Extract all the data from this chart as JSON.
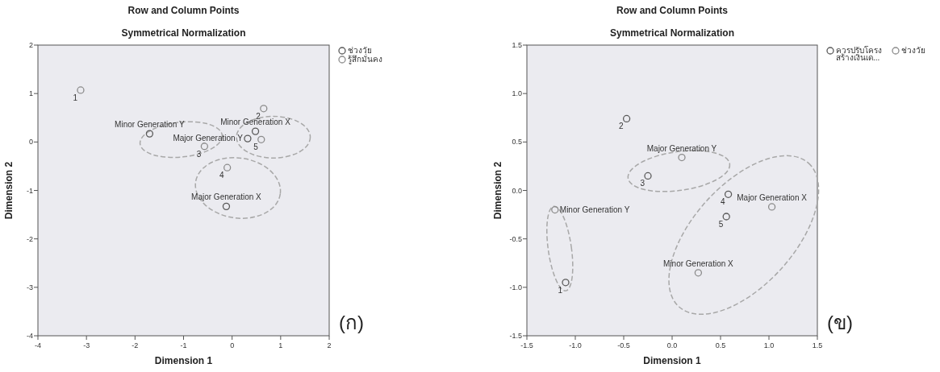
{
  "chart_data": [
    {
      "type": "scatter",
      "title": "Row and Column Points",
      "subtitle": "Symmetrical Normalization",
      "xlabel": "Dimension 1",
      "ylabel": "Dimension 2",
      "xlim": [
        -4,
        2
      ],
      "ylim": [
        -4,
        2
      ],
      "xticks": [
        -4,
        -3,
        -2,
        -1,
        0,
        1,
        2
      ],
      "yticks": [
        -4,
        -3,
        -2,
        -1,
        0,
        1,
        2
      ],
      "grid": false,
      "legend": "top right",
      "marker": "circle",
      "series": [
        {
          "name": "ช่วงวัย",
          "color": "#5a5a5a",
          "x": [
            -1.7,
            0.32,
            0.48,
            -0.12
          ],
          "values": [
            0.17,
            0.07,
            0.22,
            -1.33
          ]
        },
        {
          "name": "รู้สึกมั่นคง",
          "color": "#8c8c8c",
          "x": [
            -3.12,
            0.65,
            -0.57,
            -0.1,
            0.6
          ],
          "values": [
            1.07,
            0.69,
            -0.09,
            -0.53,
            0.05
          ]
        }
      ],
      "annotations": [
        {
          "text": "Minor Generation Y",
          "x": -1.7,
          "y": 0.17
        },
        {
          "text": "Major Generation Y",
          "x": 0.32,
          "y": 0.07
        },
        {
          "text": "Minor Generation X",
          "x": 0.48,
          "y": 0.22
        },
        {
          "text": "Major Generation X",
          "x": -0.12,
          "y": -1.33
        },
        {
          "text": "1",
          "x": -3.12,
          "y": 1.07
        },
        {
          "text": "2",
          "x": 0.65,
          "y": 0.69
        },
        {
          "text": "3",
          "x": -0.57,
          "y": -0.09
        },
        {
          "text": "4",
          "x": -0.1,
          "y": -0.53
        },
        {
          "text": "5",
          "x": 0.6,
          "y": 0.05
        },
        "(ก)"
      ]
    },
    {
      "type": "scatter",
      "title": "Row and Column Points",
      "subtitle": "Symmetrical Normalization",
      "xlabel": "Dimension 1",
      "ylabel": "Dimension 2",
      "xlim": [
        -1.5,
        1.5
      ],
      "ylim": [
        -1.5,
        1.5
      ],
      "xticks": [
        {
          "value": -1.5,
          "label": "-1.5"
        },
        {
          "value": -1,
          "label": "-1.0"
        },
        {
          "value": -0.5,
          "label": "-0.5"
        },
        {
          "value": 0,
          "label": "0.0"
        },
        {
          "value": 0.5,
          "label": "0.5"
        },
        {
          "value": 1,
          "label": "1.0"
        },
        {
          "value": 1.5,
          "label": "1.5"
        }
      ],
      "yticks": [
        {
          "value": -1.5,
          "label": "-1.5"
        },
        {
          "value": -1,
          "label": "-1.0"
        },
        {
          "value": -0.5,
          "label": "-0.5"
        },
        {
          "value": 0,
          "label": "0.0"
        },
        {
          "value": 0.5,
          "label": "0.5"
        },
        {
          "value": 1,
          "label": "1.0"
        },
        {
          "value": 1.5,
          "label": "1.5"
        }
      ],
      "grid": false,
      "legend": "top right",
      "marker": "circle",
      "series": [
        {
          "name": "ควรปรับโครงสร้างเงินเด...",
          "color": "#5a5a5a",
          "x": [
            -1.1,
            -0.47,
            -0.25,
            0.58,
            0.56
          ],
          "values": [
            -0.95,
            0.74,
            0.15,
            -0.04,
            -0.27
          ]
        },
        {
          "name": "ช่วงวัย",
          "color": "#8c8c8c",
          "x": [
            0.1,
            -1.21,
            1.03,
            0.27
          ],
          "values": [
            0.34,
            -0.2,
            -0.17,
            -0.85
          ]
        }
      ],
      "annotations": [
        {
          "text": "1",
          "x": -1.1,
          "y": -0.95
        },
        {
          "text": "2",
          "x": -0.47,
          "y": 0.74
        },
        {
          "text": "3",
          "x": -0.25,
          "y": 0.15
        },
        {
          "text": "4",
          "x": 0.58,
          "y": -0.04
        },
        {
          "text": "5",
          "x": 0.56,
          "y": -0.27
        },
        {
          "text": "Major Generation Y",
          "x": 0.1,
          "y": 0.34
        },
        {
          "text": "Minor Generation Y",
          "x": -1.21,
          "y": -0.2
        },
        {
          "text": "Major Generation X",
          "x": 1.03,
          "y": -0.17
        },
        {
          "text": "Minor Generation X",
          "x": 0.27,
          "y": -0.85
        },
        "(ข)"
      ]
    }
  ]
}
